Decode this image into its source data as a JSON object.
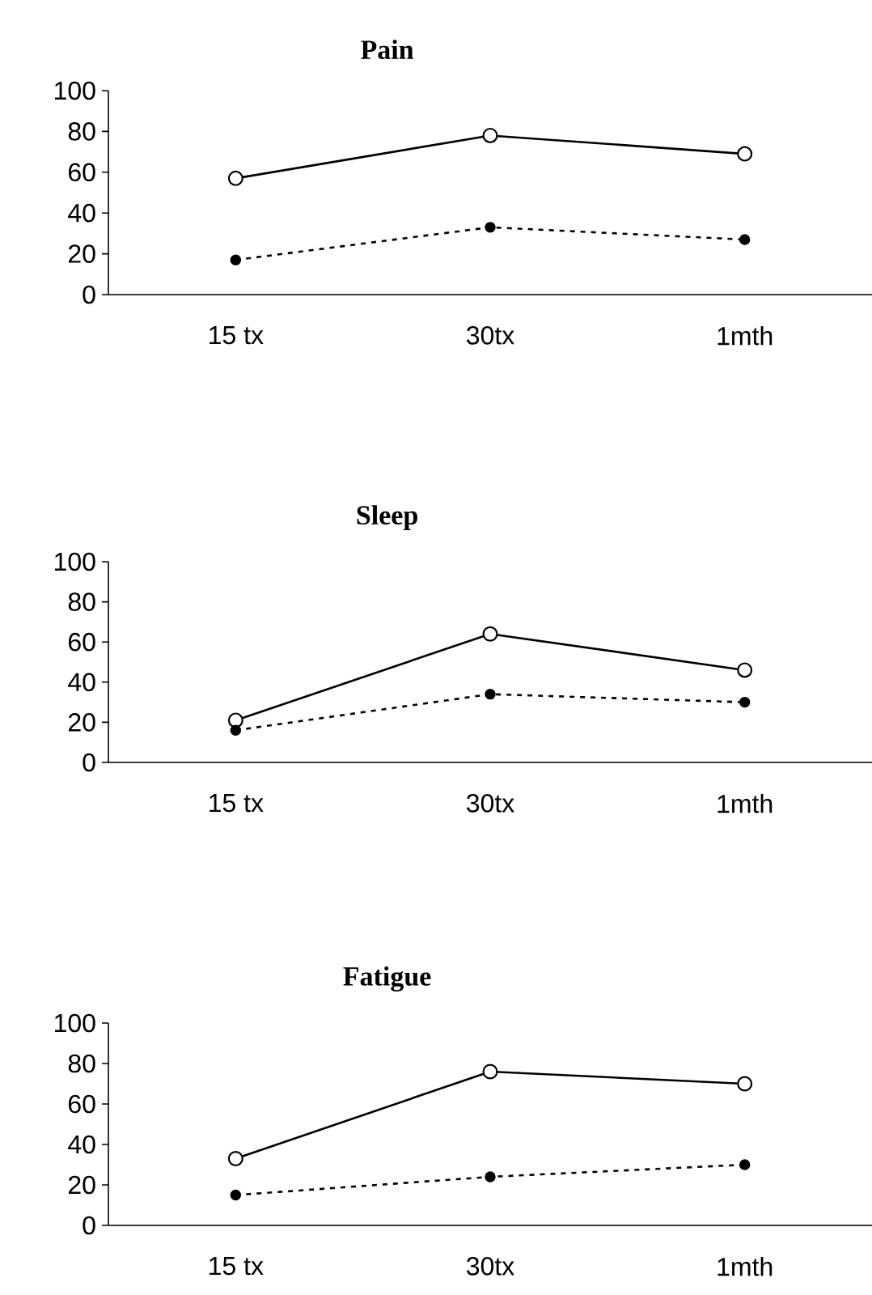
{
  "chart_data": [
    {
      "type": "line",
      "title": "Pain",
      "categories": [
        "15 tx",
        "30tx",
        "1mth"
      ],
      "series": [
        {
          "color": "#000000",
          "values": [
            57,
            78,
            69
          ],
          "marker": "circle",
          "line_style": "solid"
        },
        {
          "color": "#000000",
          "values": [
            17,
            33,
            27
          ],
          "marker": "circle",
          "line_style": "dashed"
        }
      ],
      "ylim": [
        0,
        100
      ],
      "yticks": [
        0,
        20,
        40,
        60,
        80,
        100
      ]
    },
    {
      "type": "line",
      "title": "Sleep",
      "categories": [
        "15 tx",
        "30tx",
        "1mth"
      ],
      "series": [
        {
          "color": "#000000",
          "values": [
            21,
            64,
            46
          ],
          "marker": "circle",
          "line_style": "solid"
        },
        {
          "color": "#000000",
          "values": [
            16,
            34,
            30
          ],
          "marker": "circle",
          "line_style": "dashed"
        }
      ],
      "ylim": [
        0,
        100
      ],
      "yticks": [
        0,
        20,
        40,
        60,
        80,
        100
      ]
    },
    {
      "type": "line",
      "title": "Fatigue",
      "categories": [
        "15 tx",
        "30tx",
        "1mth"
      ],
      "series": [
        {
          "color": "#000000",
          "values": [
            33,
            76,
            70
          ],
          "marker": "circle",
          "line_style": "solid"
        },
        {
          "color": "#000000",
          "values": [
            15,
            24,
            30
          ],
          "marker": "circle",
          "line_style": "dashed"
        }
      ],
      "ylim": [
        0,
        100
      ],
      "yticks": [
        0,
        20,
        40,
        60,
        80,
        100
      ]
    }
  ]
}
